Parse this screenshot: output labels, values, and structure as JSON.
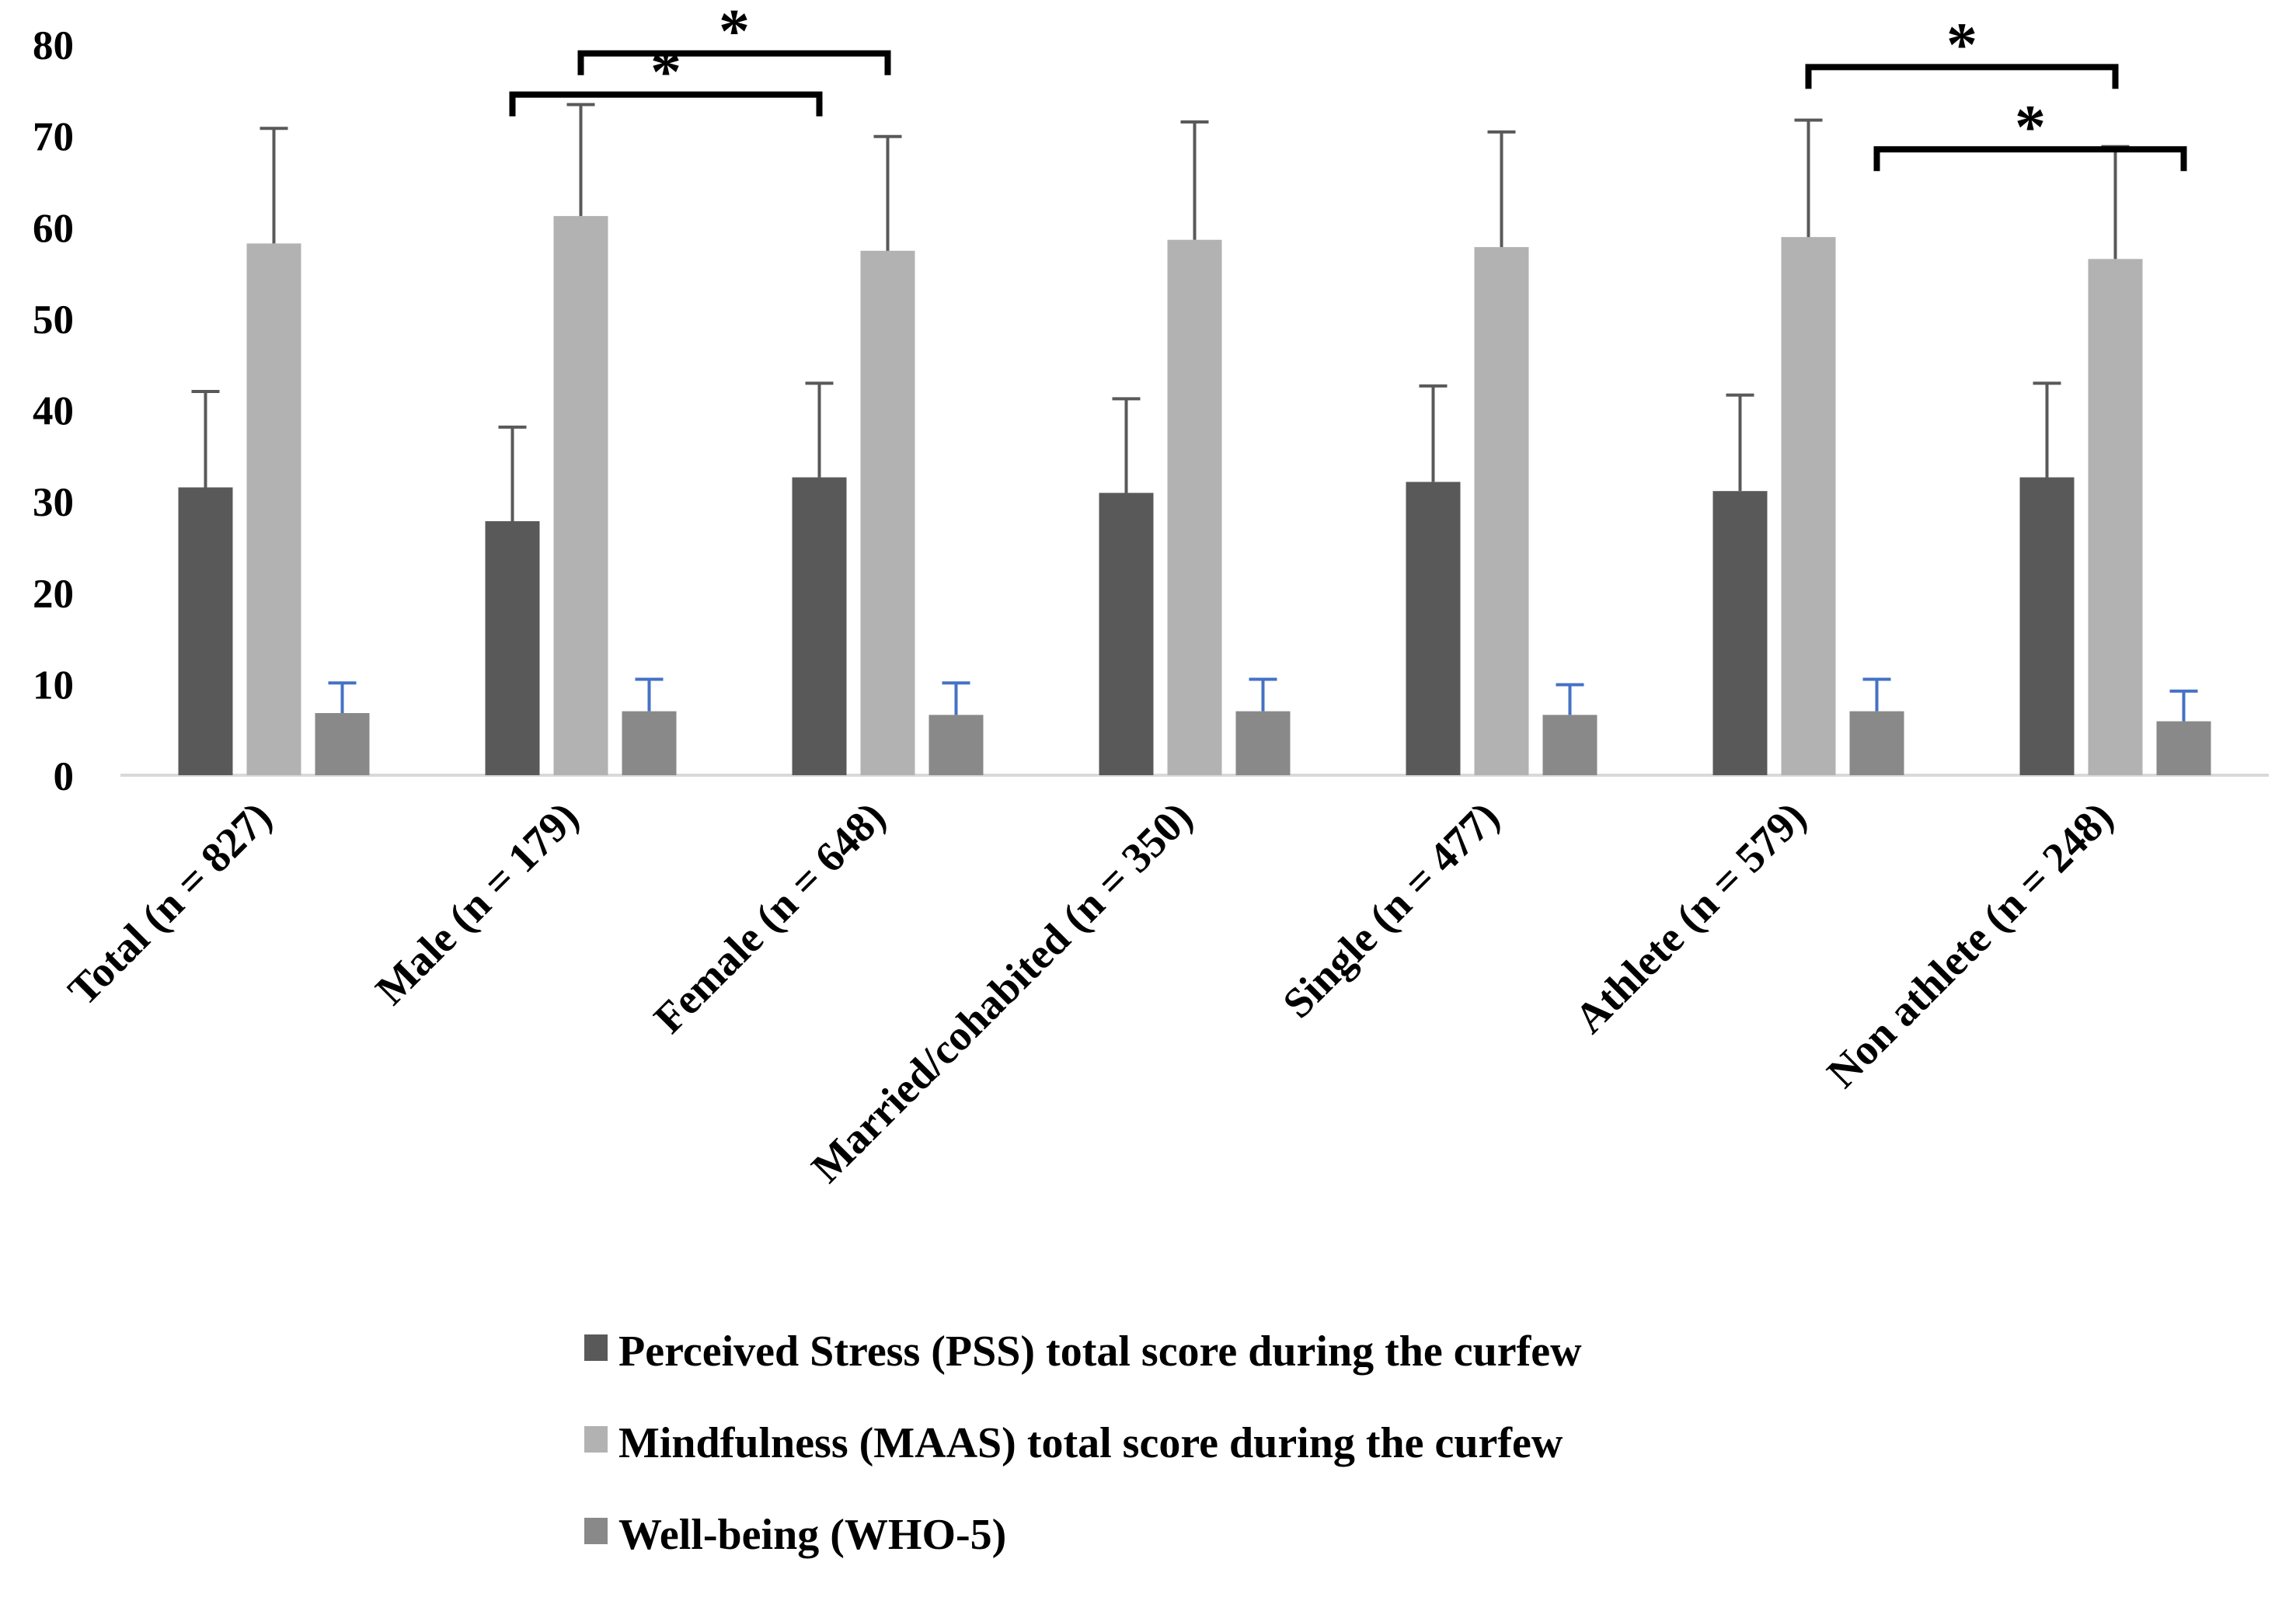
{
  "chart_data": {
    "type": "bar",
    "title": "",
    "xlabel": "",
    "ylabel": "",
    "ylim": [
      0,
      80
    ],
    "yticks": [
      0,
      10,
      20,
      30,
      40,
      50,
      60,
      70,
      80
    ],
    "grid": false,
    "legend_position": "bottom",
    "categories": [
      "Total (n = 827)",
      "Male (n = 179)",
      "Female (n = 648)",
      "Married/cohabited  (n = 350)",
      "Single (n = 477)",
      "Athlete (n = 579)",
      "Non athlete (n = 248)"
    ],
    "series": [
      {
        "name": "Perceived Stress (PSS) total score  during the curfew",
        "color": "#595959",
        "errorbar_color": "#595959",
        "values": [
          31.5,
          27.8,
          32.6,
          30.9,
          32.1,
          31.1,
          32.6
        ],
        "error": [
          10.5,
          10.3,
          10.3,
          10.3,
          10.5,
          10.5,
          10.3
        ]
      },
      {
        "name": "Mindfulness (MAAS) total score  during the curfew",
        "color": "#b2b2b2",
        "errorbar_color": "#595959",
        "values": [
          58.2,
          61.2,
          57.4,
          58.6,
          57.8,
          58.9,
          56.5
        ],
        "error": [
          12.6,
          12.2,
          12.5,
          12.9,
          12.6,
          12.8,
          12.3
        ]
      },
      {
        "name": "Well-being (WHO-5)",
        "color": "#898989",
        "errorbar_color": "#4472c4",
        "values": [
          6.8,
          7.0,
          6.6,
          7.0,
          6.6,
          7.0,
          5.9
        ],
        "error": [
          3.3,
          3.5,
          3.5,
          3.5,
          3.3,
          3.5,
          3.3
        ]
      }
    ],
    "annotations": [
      {
        "label": "*",
        "from": {
          "category": 1,
          "series": 0
        },
        "to": {
          "category": 2,
          "series": 0
        },
        "y": 74.5
      },
      {
        "label": "*",
        "from": {
          "category": 1,
          "series": 1
        },
        "to": {
          "category": 2,
          "series": 1
        },
        "y": 79.0
      },
      {
        "label": "*",
        "from": {
          "category": 5,
          "series": 1
        },
        "to": {
          "category": 6,
          "series": 1
        },
        "y": 77.5
      },
      {
        "label": "*",
        "from": {
          "category": 5,
          "series": 2
        },
        "to": {
          "category": 6,
          "series": 2
        },
        "y": 68.5
      }
    ]
  }
}
